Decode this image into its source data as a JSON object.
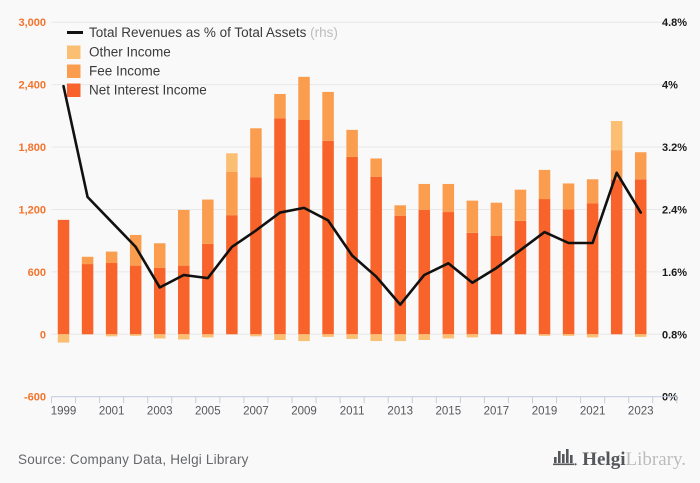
{
  "chart_data": {
    "type": "bar",
    "subtype": "stacked-bars-with-line",
    "title": "",
    "categories": [
      1999,
      2000,
      2001,
      2002,
      2003,
      2004,
      2005,
      2006,
      2007,
      2008,
      2009,
      2010,
      2011,
      2012,
      2013,
      2014,
      2015,
      2016,
      2017,
      2018,
      2019,
      2020,
      2021,
      2022,
      2023
    ],
    "bar_series": [
      {
        "name": "Net Interest Income",
        "color": "#f7632a",
        "values": [
          1100,
          675,
          685,
          660,
          640,
          660,
          870,
          1145,
          1510,
          2075,
          2060,
          1860,
          1705,
          1515,
          1140,
          1195,
          1175,
          975,
          945,
          1090,
          1300,
          1200,
          1260,
          1490,
          1490
        ]
      },
      {
        "name": "Fee Income",
        "color": "#fa9d4f",
        "values": [
          0,
          70,
          110,
          295,
          235,
          535,
          425,
          415,
          470,
          235,
          415,
          470,
          260,
          175,
          100,
          250,
          270,
          310,
          320,
          300,
          280,
          250,
          230,
          280,
          260
        ]
      },
      {
        "name": "Other Income",
        "color": "#fbbf73",
        "values": [
          -80,
          0,
          -20,
          -15,
          -40,
          -50,
          -30,
          180,
          -20,
          -55,
          -65,
          -25,
          -45,
          -65,
          -65,
          -55,
          -40,
          -30,
          0,
          0,
          -15,
          -15,
          -30,
          280,
          -25
        ]
      }
    ],
    "line_series": {
      "name": "Total Revenues as % of Total Assets",
      "suffix": "(rhs)",
      "axis": "right",
      "color": "#111111",
      "values": [
        3.98,
        2.56,
        2.24,
        1.92,
        1.4,
        1.56,
        1.52,
        1.92,
        2.13,
        2.36,
        2.42,
        2.26,
        1.81,
        1.54,
        1.18,
        1.56,
        1.71,
        1.46,
        1.65,
        1.88,
        2.11,
        1.97,
        1.97,
        2.87,
        2.36
      ]
    },
    "left_axis": {
      "range": [
        -600,
        3000
      ],
      "ticks": [
        {
          "label": "3,000",
          "value": 3000
        },
        {
          "label": "2,400",
          "value": 2400
        },
        {
          "label": "1,800",
          "value": 1800
        },
        {
          "label": "1,200",
          "value": 1200
        },
        {
          "label": "600",
          "value": 600
        },
        {
          "label": "0",
          "value": 0
        },
        {
          "label": "-600",
          "value": -600
        }
      ],
      "label_color": "#f4732c"
    },
    "right_axis": {
      "range": [
        0,
        4.8
      ],
      "ticks": [
        {
          "label": "4.8%",
          "value": 4.8
        },
        {
          "label": "4%",
          "value": 4.0
        },
        {
          "label": "3.2%",
          "value": 3.2
        },
        {
          "label": "2.4%",
          "value": 2.4
        },
        {
          "label": "1.6%",
          "value": 1.6
        },
        {
          "label": "0.8%",
          "value": 0.8
        },
        {
          "label": "0%",
          "value": 0
        }
      ],
      "label_color": "#1a1a1a"
    },
    "x_axis": {
      "labeled_years": [
        "1999",
        "2001",
        "2003",
        "2005",
        "2007",
        "2009",
        "2011",
        "2013",
        "2015",
        "2017",
        "2019",
        "2021",
        "2023"
      ],
      "label_color": "#55565a",
      "axis_color": "#c5cee0"
    },
    "legend_position": "top-left",
    "grid": "horizontal",
    "gridline_color": "#e8e8e8",
    "background": "#f9f9f9"
  },
  "footer": {
    "source": "Source: Company Data, Helgi Library",
    "logo_primary": "Helgi",
    "logo_secondary": "Library."
  }
}
